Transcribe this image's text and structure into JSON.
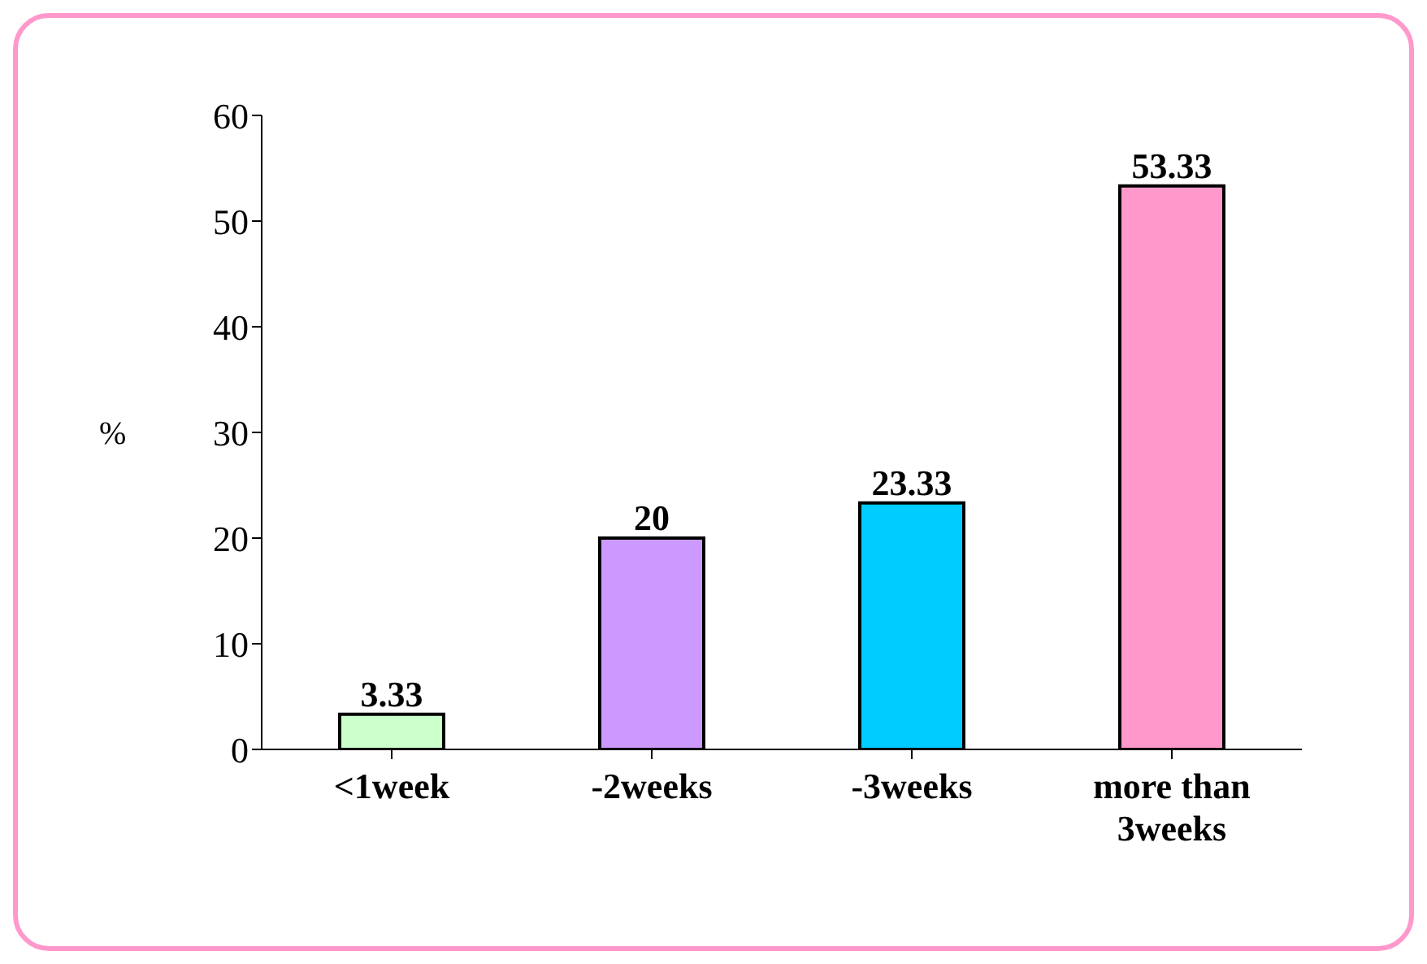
{
  "chart_data": {
    "type": "bar",
    "ylabel": "%",
    "categories": [
      "<1week",
      "-2weeks",
      "-3weeks",
      "more than 3weeks"
    ],
    "values": [
      3.33,
      20,
      23.33,
      53.33
    ],
    "colors": [
      "#ccffcc",
      "#cc99ff",
      "#00ccff",
      "#ff99cc"
    ],
    "ylim": [
      0,
      60
    ],
    "yticks": [
      0,
      10,
      20,
      30,
      40,
      50,
      60
    ],
    "grid": false,
    "data_labels": true
  }
}
